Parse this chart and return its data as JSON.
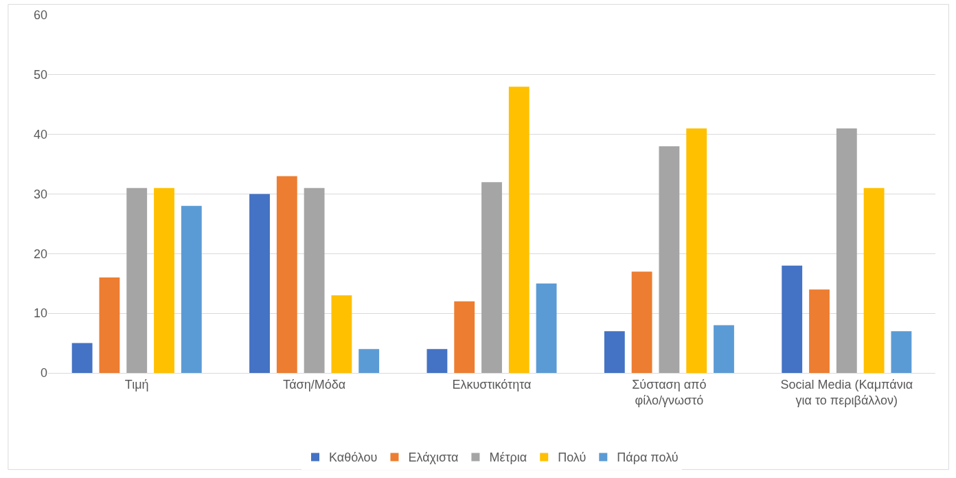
{
  "chart_data": {
    "type": "bar",
    "categories": [
      "Τιμή",
      "Τάση/Μόδα",
      "Ελκυστικότητα",
      "Σύσταση από\nφίλο/γνωστό",
      "Social Media (Καμπάνια\nγια το περιβάλλον)"
    ],
    "series": [
      {
        "name": "Καθόλου",
        "color": "#4472c4",
        "values": [
          5,
          30,
          4,
          7,
          18
        ]
      },
      {
        "name": "Ελάχιστα",
        "color": "#ed7d31",
        "values": [
          16,
          33,
          12,
          17,
          14
        ]
      },
      {
        "name": "Μέτρια",
        "color": "#a5a5a5",
        "values": [
          31,
          31,
          32,
          38,
          41
        ]
      },
      {
        "name": "Πολύ",
        "color": "#ffc000",
        "values": [
          31,
          13,
          48,
          41,
          31
        ]
      },
      {
        "name": "Πάρα πολύ",
        "color": "#5b9bd5",
        "values": [
          28,
          4,
          15,
          8,
          7
        ]
      }
    ],
    "ylim": [
      0,
      60
    ],
    "yticks": [
      0,
      10,
      20,
      30,
      40,
      50,
      60
    ],
    "grid": "y",
    "legend": "bottom"
  }
}
